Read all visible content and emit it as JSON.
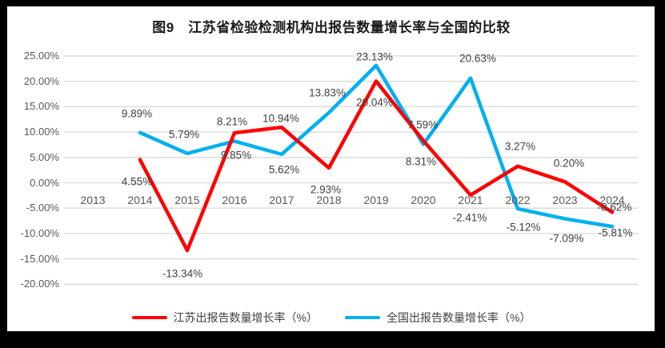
{
  "title": "图9　江苏省检验检测机构出报告数量增长率与全国的比较",
  "chart_data": {
    "type": "line",
    "categories": [
      "2013",
      "2014",
      "2015",
      "2016",
      "2017",
      "2018",
      "2019",
      "2020",
      "2021",
      "2022",
      "2023",
      "2024"
    ],
    "series": [
      {
        "name": "全国出报告数量增长率（%）",
        "color": "#00B0F0",
        "values": [
          null,
          9.89,
          5.79,
          8.21,
          5.62,
          13.83,
          23.13,
          7.59,
          20.63,
          -5.12,
          -7.09,
          -8.62
        ],
        "labels": [
          "",
          "9.89%",
          "5.79%",
          "8.21%",
          "5.62%",
          "13.83%",
          "23.13%",
          "7.59%",
          "20.63%",
          "-5.12%",
          "-7.09%",
          "-8.62%"
        ],
        "label_offsets": [
          [
            0,
            0
          ],
          [
            -4,
            -24
          ],
          [
            -4,
            -24
          ],
          [
            -3,
            -24
          ],
          [
            3,
            19
          ],
          [
            -2,
            -25
          ],
          [
            -2,
            -11
          ],
          [
            -1,
            -24
          ],
          [
            9,
            -25
          ],
          [
            7,
            23
          ],
          [
            2,
            25
          ],
          [
            3,
            -24
          ]
        ]
      },
      {
        "name": "江苏出报告数量增长率（%）",
        "color": "#FF0000",
        "values": [
          null,
          4.55,
          -13.34,
          9.85,
          10.94,
          2.93,
          20.04,
          8.31,
          -2.41,
          3.27,
          0.2,
          -5.81
        ],
        "labels": [
          "",
          "4.55%",
          "-13.34%",
          "9.85%",
          "10.94%",
          "2.93%",
          "20.04%",
          "8.31%",
          "-2.41%",
          "3.27%",
          "0.20%",
          "-5.81%"
        ],
        "label_offsets": [
          [
            0,
            0
          ],
          [
            -4,
            27
          ],
          [
            -6,
            29
          ],
          [
            2,
            28
          ],
          [
            -1,
            -11
          ],
          [
            -4,
            27
          ],
          [
            -2,
            27
          ],
          [
            -3,
            26
          ],
          [
            -1,
            28
          ],
          [
            3,
            -25
          ],
          [
            5,
            -23
          ],
          [
            4,
            26
          ]
        ]
      }
    ],
    "y_ticks": [
      "25.00%",
      "20.00%",
      "15.00%",
      "10.00%",
      "5.00%",
      "0.00%",
      "-5.00%",
      "-10.00%",
      "-15.00%",
      "-20.00%"
    ],
    "y_tick_values": [
      25,
      20,
      15,
      10,
      5,
      0,
      -5,
      -10,
      -15,
      -20
    ],
    "ylim": [
      -20,
      25
    ],
    "xlabel": "",
    "ylabel": "",
    "grid": true,
    "grid_color": "#D9D9D9",
    "background": "#FFFFFF",
    "legend_position": "bottom"
  }
}
